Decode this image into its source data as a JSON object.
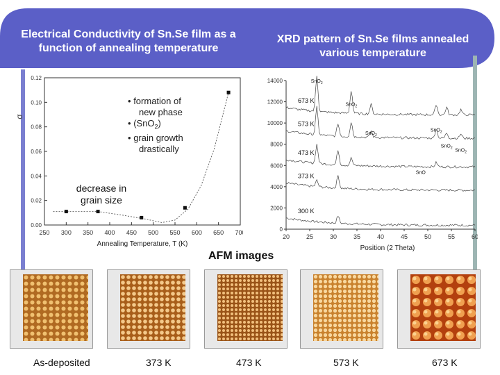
{
  "header": {
    "left_title_line1": "Electrical Conductivity of Sn.Se film as a",
    "left_title_line2": "function of annealing temperature",
    "right_title_line1": "XRD pattern of Sn.Se films annealed",
    "right_title_line2": "various temperature"
  },
  "colors": {
    "banner": "#5b5fc7",
    "accent_bar": "#7a7fd0",
    "right_bar": "#9db5b3"
  },
  "conductivity": {
    "chart_data": {
      "type": "line",
      "xlabel": "Annealing Temperature, T (K)",
      "ylabel": "σ",
      "x_ticks": [
        "250",
        "300",
        "350",
        "400",
        "450",
        "500",
        "550",
        "600",
        "650",
        "700"
      ],
      "y_ticks": [
        "0.00",
        "0.02",
        "0.04",
        "0.06",
        "0.08",
        "0.10",
        "0.12"
      ],
      "xlim": [
        250,
        700
      ],
      "ylim": [
        0,
        0.12
      ],
      "points": [
        {
          "x": 300,
          "y": 0.011
        },
        {
          "x": 373,
          "y": 0.011
        },
        {
          "x": 473,
          "y": 0.006
        },
        {
          "x": 573,
          "y": 0.014
        },
        {
          "x": 673,
          "y": 0.108
        }
      ],
      "curve": [
        {
          "x": 270,
          "y": 0.011
        },
        {
          "x": 320,
          "y": 0.011
        },
        {
          "x": 373,
          "y": 0.011
        },
        {
          "x": 430,
          "y": 0.008
        },
        {
          "x": 480,
          "y": 0.005
        },
        {
          "x": 520,
          "y": 0.002
        },
        {
          "x": 550,
          "y": 0.004
        },
        {
          "x": 580,
          "y": 0.013
        },
        {
          "x": 610,
          "y": 0.032
        },
        {
          "x": 640,
          "y": 0.062
        },
        {
          "x": 673,
          "y": 0.108
        }
      ]
    },
    "bullets": [
      "formation of",
      "new phase",
      "(SnO",
      "2",
      ")",
      "grain growth",
      "drastically"
    ],
    "bullet_mark": "•",
    "note_line1": "decrease in",
    "note_line2": "grain size"
  },
  "xrd": {
    "chart_data": {
      "type": "line",
      "xlabel": "Position (2 Theta)",
      "x_ticks": [
        "20",
        "25",
        "30",
        "35",
        "40",
        "45",
        "50",
        "55",
        "60"
      ],
      "y_ticks": [
        "0",
        "2000",
        "4000",
        "6000",
        "8000",
        "10000",
        "12000",
        "14000"
      ],
      "xlim": [
        20,
        60
      ],
      "ylim": [
        0,
        14000
      ],
      "series": [
        {
          "name": "300 K",
          "offset": 0
        },
        {
          "name": "373 K",
          "offset": 3300
        },
        {
          "name": "473 K",
          "offset": 5500
        },
        {
          "name": "573 K",
          "offset": 8200
        },
        {
          "name": "673 K",
          "offset": 10400
        }
      ],
      "peak_labels": [
        {
          "text": "SnO",
          "sub": "2",
          "x": 26.5,
          "y": 13800
        },
        {
          "text": "SnO",
          "sub": "2",
          "x": 33.8,
          "y": 11600
        },
        {
          "text": "SnO",
          "sub": "2",
          "x": 38.0,
          "y": 8900
        },
        {
          "text": "SnO",
          "sub": "2",
          "x": 51.8,
          "y": 9200
        },
        {
          "text": "SnO",
          "sub": "2",
          "x": 54.0,
          "y": 7700
        },
        {
          "text": "SnO",
          "sub": "2",
          "x": 57.0,
          "y": 7300
        },
        {
          "text": "SnO",
          "sub": "",
          "x": 48.5,
          "y": 5200
        }
      ]
    }
  },
  "afm": {
    "title": "AFM images",
    "captions": [
      "As-deposited",
      "373 K",
      "473 K",
      "573 K",
      "673 K"
    ]
  }
}
